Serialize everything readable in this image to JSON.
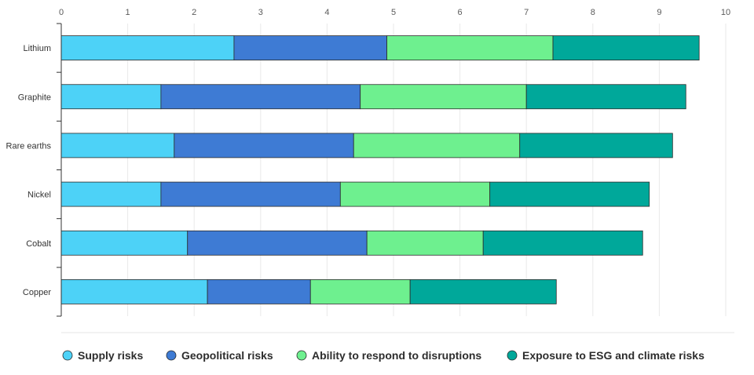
{
  "chart_data": {
    "type": "bar",
    "orientation": "horizontal",
    "stacked": true,
    "title": "",
    "xlabel": "",
    "ylabel": "",
    "xlim": [
      0,
      10
    ],
    "x_ticks": [
      "0",
      "1",
      "2",
      "3",
      "4",
      "5",
      "6",
      "7",
      "8",
      "9",
      "10"
    ],
    "categories": [
      "Lithium",
      "Graphite",
      "Rare earths",
      "Nickel",
      "Cobalt",
      "Copper"
    ],
    "series": [
      {
        "name": "Supply risks",
        "color": "#4dd2f7",
        "values": [
          2.6,
          1.5,
          1.7,
          1.5,
          1.9,
          2.2
        ]
      },
      {
        "name": "Geopolitical risks",
        "color": "#3e7bd4",
        "values": [
          2.3,
          3.0,
          2.7,
          2.7,
          2.7,
          1.55
        ]
      },
      {
        "name": "Ability to respond to disruptions",
        "color": "#6ef08f",
        "values": [
          2.5,
          2.5,
          2.5,
          2.25,
          1.75,
          1.5
        ]
      },
      {
        "name": "Exposure to ESG and climate risks",
        "color": "#00a89a",
        "values": [
          2.2,
          2.4,
          2.3,
          2.4,
          2.4,
          2.2
        ]
      }
    ],
    "grid": true,
    "legend_position": "bottom"
  }
}
